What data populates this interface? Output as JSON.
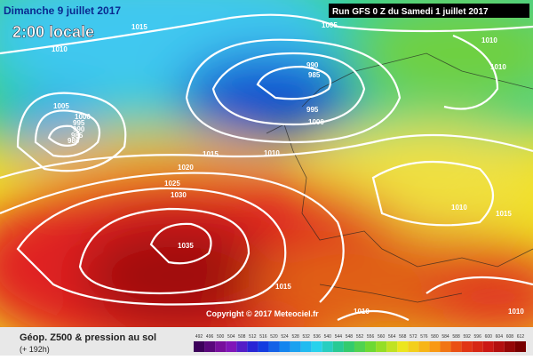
{
  "header": {
    "date": "Dimanche 9 juillet 2017",
    "time": "2:00 locale",
    "run": "Run GFS 0 Z du Samedi 1 juillet 2017"
  },
  "isobar_labels": [
    "1015",
    "1005",
    "1010",
    "1010",
    "990",
    "985",
    "1010",
    "1005",
    "1000",
    "995",
    "990",
    "985",
    "980",
    "995",
    "1000",
    "1015",
    "1010",
    "1020",
    "1025",
    "1030",
    "1010",
    "1015",
    "1035",
    "1015",
    "1010",
    "1010"
  ],
  "copyright": "Copyright © 2017 Meteociel.fr",
  "footer": {
    "title": "Géop. Z500 & pression au sol",
    "lead": "(+ 192h)"
  },
  "scale": [
    "492",
    "496",
    "500",
    "504",
    "508",
    "512",
    "516",
    "520",
    "524",
    "528",
    "532",
    "536",
    "540",
    "544",
    "548",
    "552",
    "556",
    "560",
    "564",
    "568",
    "572",
    "576",
    "580",
    "584",
    "588",
    "592",
    "596",
    "600",
    "604",
    "608",
    "612"
  ]
}
